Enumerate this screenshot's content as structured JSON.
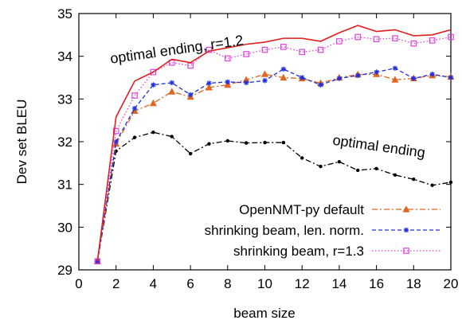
{
  "chart_data": {
    "type": "line",
    "title": "",
    "xlabel": "beam size",
    "ylabel": "Dev set BLEU",
    "xlim": [
      0,
      20
    ],
    "ylim": [
      29,
      35
    ],
    "xticks": [
      0,
      2,
      4,
      6,
      8,
      10,
      12,
      14,
      16,
      18,
      20
    ],
    "yticks": [
      29,
      30,
      31,
      32,
      33,
      34,
      35
    ],
    "grid": false,
    "legend_position": "bottom-right",
    "x": [
      1,
      2,
      3,
      4,
      5,
      6,
      7,
      8,
      9,
      10,
      11,
      12,
      13,
      14,
      15,
      16,
      17,
      18,
      19,
      20
    ],
    "series": [
      {
        "name": "OpenNMT-py default",
        "color": "#e0651e",
        "dash": "dashdot",
        "marker": "triangle",
        "in_legend": true,
        "values": [
          29.2,
          31.95,
          32.72,
          32.9,
          33.17,
          33.05,
          33.27,
          33.33,
          33.45,
          33.58,
          33.5,
          33.48,
          33.37,
          33.5,
          33.57,
          33.58,
          33.45,
          33.48,
          33.55,
          33.52
        ]
      },
      {
        "name": "shrinking beam, len. norm.",
        "color": "#1f2ee0",
        "dash": "dashed",
        "marker": "star",
        "in_legend": true,
        "values": [
          29.2,
          32.0,
          32.78,
          33.33,
          33.38,
          33.1,
          33.37,
          33.4,
          33.38,
          33.43,
          33.7,
          33.5,
          33.33,
          33.48,
          33.55,
          33.63,
          33.72,
          33.48,
          33.58,
          33.5
        ]
      },
      {
        "name": "shrinking beam, r=1.3",
        "color": "#e040e0",
        "dash": "dotted",
        "marker": "square",
        "in_legend": true,
        "values": [
          29.2,
          32.25,
          33.08,
          33.63,
          33.85,
          33.78,
          34.15,
          33.95,
          34.05,
          34.15,
          34.22,
          34.1,
          34.15,
          34.35,
          34.45,
          34.4,
          34.42,
          34.3,
          34.37,
          34.45
        ]
      },
      {
        "name": "optimal ending, r=1.2",
        "color": "#e01e1e",
        "dash": "solid",
        "marker": "none",
        "in_legend": false,
        "values": [
          29.2,
          32.58,
          33.42,
          33.63,
          33.93,
          33.85,
          34.12,
          34.2,
          34.28,
          34.33,
          34.42,
          34.42,
          34.35,
          34.55,
          34.72,
          34.58,
          34.62,
          34.48,
          34.5,
          34.62
        ]
      },
      {
        "name": "optimal ending",
        "color": "#000000",
        "dash": "dashdot",
        "marker": "circle",
        "in_legend": false,
        "values": [
          29.2,
          31.78,
          32.1,
          32.22,
          32.12,
          31.72,
          31.95,
          32.02,
          31.97,
          31.98,
          31.98,
          31.62,
          31.42,
          31.53,
          31.33,
          31.37,
          31.22,
          31.12,
          30.98,
          31.05
        ]
      }
    ],
    "annotations": [
      {
        "text": "optimal ending, r=1.2",
        "x": 5.3,
        "y": 34.05,
        "rotate": -8
      },
      {
        "text": "optimal ending",
        "x": 16.1,
        "y": 31.78,
        "rotate": 8
      }
    ]
  }
}
